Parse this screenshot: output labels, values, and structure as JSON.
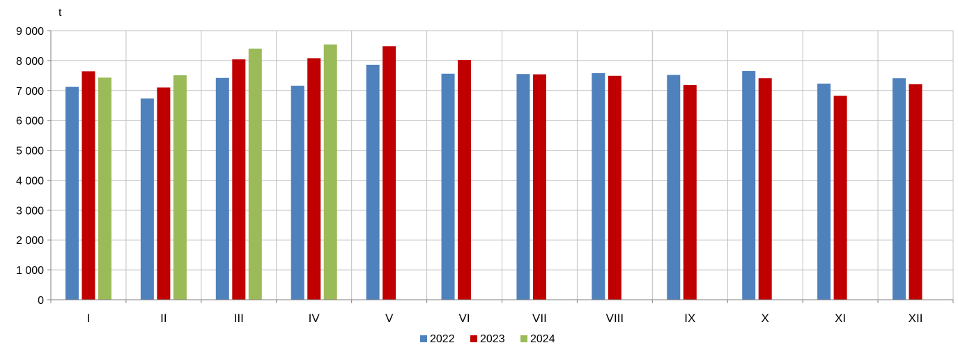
{
  "chart_data": {
    "type": "bar",
    "unit_label": "t",
    "categories": [
      "I",
      "II",
      "III",
      "IV",
      "V",
      "VI",
      "VII",
      "VIII",
      "IX",
      "X",
      "XI",
      "XII"
    ],
    "series": [
      {
        "name": "2022",
        "color": "#4F81BD",
        "values": [
          7120,
          6730,
          7420,
          7160,
          7860,
          7560,
          7550,
          7580,
          7520,
          7650,
          7230,
          7410
        ]
      },
      {
        "name": "2023",
        "color": "#C00000",
        "values": [
          7640,
          7100,
          8040,
          8080,
          8480,
          8020,
          7540,
          7490,
          7180,
          7410,
          6820,
          7210
        ]
      },
      {
        "name": "2024",
        "color": "#9BBB59",
        "values": [
          7430,
          7510,
          8400,
          8540,
          null,
          null,
          null,
          null,
          null,
          null,
          null,
          null
        ]
      }
    ],
    "y_ticks": [
      "0",
      "1 000",
      "2 000",
      "3 000",
      "4 000",
      "5 000",
      "6 000",
      "7 000",
      "8 000",
      "9 000"
    ],
    "ylim": [
      0,
      9000
    ],
    "grid": true,
    "legend_position": "bottom"
  }
}
